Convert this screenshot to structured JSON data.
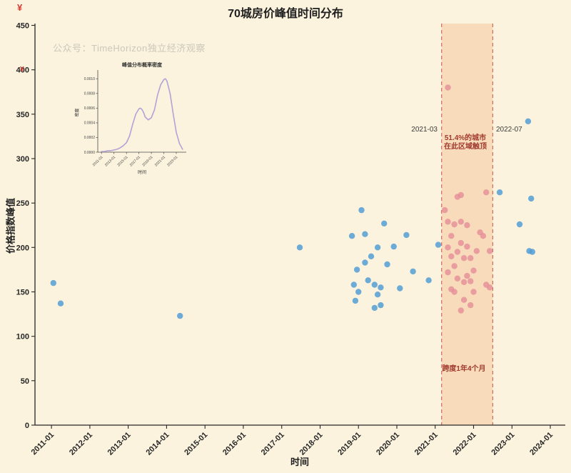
{
  "figure": {
    "title": "70城房价峰值时间分布",
    "watermark": "公众号：TimeHorizon独立经济观察",
    "currency_mark": "¥",
    "xlabel": "时间",
    "ylabel": "价格指数峰值",
    "background": "#fbf3de"
  },
  "annotations": {
    "band_left_label": "2021-03",
    "band_right_label": "2022-07",
    "band_stat_line1": "51.4%的城市",
    "band_stat_line2": "在此区域触顶",
    "band_span": "跨度1年4个月"
  },
  "chart_data": [
    {
      "type": "scatter",
      "title": "70城房价峰值时间分布",
      "xlabel": "时间",
      "ylabel": "价格指数峰值",
      "xlim": [
        2010.57,
        2024.39
      ],
      "ylim": [
        0,
        452
      ],
      "grid": false,
      "yticks": [
        0,
        50,
        100,
        150,
        200,
        250,
        300,
        350,
        400,
        450
      ],
      "xticks": [
        "2011-01",
        "2012-01",
        "2013-01",
        "2014-01",
        "2015-01",
        "2016-01",
        "2017-01",
        "2018-01",
        "2019-01",
        "2020-01",
        "2021-01",
        "2022-01",
        "2023-01",
        "2024-01"
      ],
      "band": {
        "label_from": "2021-03",
        "label_to": "2022-07",
        "x0": 2021.167,
        "x1": 2022.5,
        "fill": "#e8893c",
        "fill_opacity": 0.22,
        "edge_color": "#c9554a"
      },
      "series": [
        {
          "name": "peak-outside-band",
          "color": "#4d9bd6",
          "points": [
            [
              2011.05,
              160
            ],
            [
              2011.24,
              137
            ],
            [
              2014.35,
              123
            ],
            [
              2017.47,
              200
            ],
            [
              2018.83,
              213
            ],
            [
              2018.88,
              158
            ],
            [
              2018.92,
              140
            ],
            [
              2018.96,
              175
            ],
            [
              2019.0,
              150
            ],
            [
              2019.08,
              242
            ],
            [
              2019.17,
              215
            ],
            [
              2019.17,
              183
            ],
            [
              2019.25,
              163
            ],
            [
              2019.33,
              190
            ],
            [
              2019.42,
              158
            ],
            [
              2019.42,
              132
            ],
            [
              2019.5,
              200
            ],
            [
              2019.5,
              147
            ],
            [
              2019.58,
              155
            ],
            [
              2019.58,
              135
            ],
            [
              2019.67,
              227
            ],
            [
              2019.75,
              181
            ],
            [
              2019.92,
              201
            ],
            [
              2020.08,
              154
            ],
            [
              2020.25,
              214
            ],
            [
              2020.42,
              173
            ],
            [
              2020.83,
              163
            ],
            [
              2021.08,
              203
            ],
            [
              2022.68,
              262
            ],
            [
              2023.2,
              226
            ],
            [
              2023.42,
              342
            ],
            [
              2023.45,
              196
            ],
            [
              2023.5,
              255
            ],
            [
              2023.53,
              195
            ]
          ]
        },
        {
          "name": "peak-inside-band",
          "color": "#e58f99",
          "points": [
            [
              2021.33,
              380
            ],
            [
              2021.25,
              242
            ],
            [
              2021.33,
              229
            ],
            [
              2021.33,
              200
            ],
            [
              2021.33,
              172
            ],
            [
              2021.42,
              213
            ],
            [
              2021.42,
              190
            ],
            [
              2021.42,
              153
            ],
            [
              2021.5,
              179
            ],
            [
              2021.5,
              150
            ],
            [
              2021.5,
              226
            ],
            [
              2021.58,
              165
            ],
            [
              2021.58,
              195
            ],
            [
              2021.58,
              257
            ],
            [
              2021.67,
              259
            ],
            [
              2021.67,
              229
            ],
            [
              2021.67,
              205
            ],
            [
              2021.67,
              129
            ],
            [
              2021.75,
              188
            ],
            [
              2021.75,
              161
            ],
            [
              2021.75,
              141
            ],
            [
              2021.83,
              168
            ],
            [
              2021.83,
              201
            ],
            [
              2021.83,
              225
            ],
            [
              2021.92,
              162
            ],
            [
              2021.92,
              188
            ],
            [
              2021.92,
              135
            ],
            [
              2022.0,
              174
            ],
            [
              2022.0,
              150
            ],
            [
              2022.08,
              196
            ],
            [
              2022.17,
              217
            ],
            [
              2022.25,
              213
            ],
            [
              2022.33,
              262
            ],
            [
              2022.33,
              158
            ],
            [
              2022.42,
              196
            ],
            [
              2022.42,
              155
            ]
          ]
        }
      ]
    },
    {
      "type": "line",
      "title": "峰值分布概率密度",
      "xlabel": "时间",
      "ylabel": "密度",
      "color": "#b3a2d6",
      "yticks": [
        "0.0000",
        "0.0002",
        "0.0004",
        "0.0006",
        "0.0008",
        "0.0010"
      ],
      "xticks": [
        "2011-01",
        "2013-01",
        "2015-01",
        "2017-01",
        "2019-01",
        "2021-01",
        "2023-01"
      ],
      "x": [
        2011,
        2011.5,
        2012,
        2012.5,
        2013,
        2013.5,
        2014,
        2014.5,
        2015,
        2015.5,
        2016,
        2016.5,
        2017,
        2017.25,
        2017.5,
        2017.75,
        2018,
        2018.5,
        2019,
        2019.5,
        2020,
        2020.5,
        2021,
        2021.25,
        2021.5,
        2022,
        2022.5,
        2023,
        2023.5,
        2024
      ],
      "y": [
        1e-05,
        1e-05,
        2e-05,
        2e-05,
        3e-05,
        4e-05,
        6e-05,
        9e-05,
        0.00013,
        0.00022,
        0.00038,
        0.00052,
        0.00059,
        0.0006,
        0.00058,
        0.00054,
        0.00048,
        0.00044,
        0.00047,
        0.00058,
        0.00078,
        0.00092,
        0.00099,
        0.001,
        0.00097,
        0.0008,
        0.00052,
        0.00027,
        0.00012,
        4e-05
      ]
    }
  ]
}
